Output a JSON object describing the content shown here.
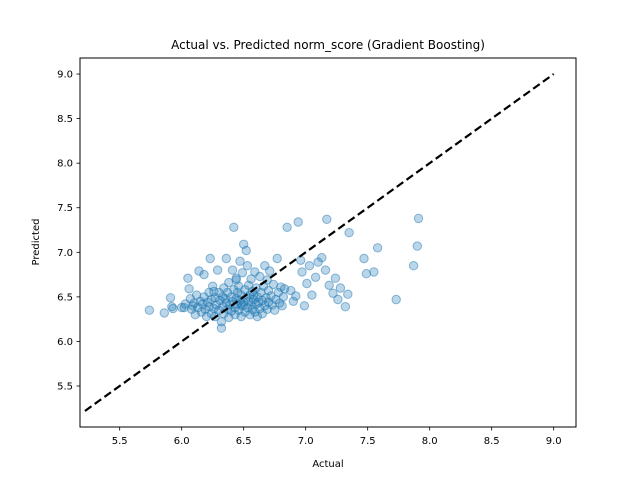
{
  "chart_data": {
    "type": "scatter",
    "title": "Actual vs. Predicted norm_score (Gradient Boosting)",
    "xlabel": "Actual",
    "ylabel": "Predicted",
    "xlim": [
      5.18,
      9.18
    ],
    "ylim": [
      5.04,
      9.18
    ],
    "x_ticks": [
      "5.5",
      "6.0",
      "6.5",
      "7.0",
      "7.5",
      "8.0",
      "8.5",
      "9.0"
    ],
    "y_ticks": [
      "5.5",
      "6.0",
      "6.5",
      "7.0",
      "7.5",
      "8.0",
      "8.5",
      "9.0"
    ],
    "grid": false,
    "legend": "none",
    "point_color": "#1f77b4",
    "point_alpha": 0.3,
    "reference_line": {
      "x": [
        5.22,
        9.0
      ],
      "y": [
        5.22,
        9.0
      ],
      "style": "dashed",
      "color": "#000000"
    },
    "points": [
      [
        5.74,
        6.35
      ],
      [
        5.86,
        6.32
      ],
      [
        5.91,
        6.49
      ],
      [
        5.92,
        6.39
      ],
      [
        5.93,
        6.37
      ],
      [
        6.02,
        6.38
      ],
      [
        6.03,
        6.42
      ],
      [
        6.05,
        6.71
      ],
      [
        6.06,
        6.59
      ],
      [
        6.07,
        6.48
      ],
      [
        6.08,
        6.36
      ],
      [
        6.09,
        6.4
      ],
      [
        6.1,
        6.43
      ],
      [
        6.11,
        6.3
      ],
      [
        6.12,
        6.52
      ],
      [
        6.13,
        6.38
      ],
      [
        6.14,
        6.79
      ],
      [
        6.15,
        6.45
      ],
      [
        6.16,
        6.33
      ],
      [
        6.17,
        6.42
      ],
      [
        6.18,
        6.5
      ],
      [
        6.18,
        6.75
      ],
      [
        6.19,
        6.36
      ],
      [
        6.2,
        6.28
      ],
      [
        6.21,
        6.44
      ],
      [
        6.22,
        6.55
      ],
      [
        6.22,
        6.39
      ],
      [
        6.23,
        6.93
      ],
      [
        6.24,
        6.31
      ],
      [
        6.24,
        6.47
      ],
      [
        6.25,
        6.62
      ],
      [
        6.26,
        6.37
      ],
      [
        6.27,
        6.49
      ],
      [
        6.27,
        6.28
      ],
      [
        6.28,
        6.41
      ],
      [
        6.29,
        6.8
      ],
      [
        6.3,
        6.55
      ],
      [
        6.3,
        6.35
      ],
      [
        6.31,
        6.46
      ],
      [
        6.32,
        6.15
      ],
      [
        6.32,
        6.22
      ],
      [
        6.33,
        6.39
      ],
      [
        6.34,
        6.6
      ],
      [
        6.34,
        6.31
      ],
      [
        6.35,
        6.48
      ],
      [
        6.36,
        6.93
      ],
      [
        6.36,
        6.43
      ],
      [
        6.37,
        6.36
      ],
      [
        6.37,
        6.55
      ],
      [
        6.38,
        6.27
      ],
      [
        6.38,
        6.66
      ],
      [
        6.39,
        6.41
      ],
      [
        6.4,
        6.5
      ],
      [
        6.4,
        6.34
      ],
      [
        6.41,
        6.8
      ],
      [
        6.41,
        6.45
      ],
      [
        6.42,
        7.28
      ],
      [
        6.42,
        6.58
      ],
      [
        6.43,
        6.38
      ],
      [
        6.43,
        6.3
      ],
      [
        6.44,
        6.48
      ],
      [
        6.44,
        6.71
      ],
      [
        6.45,
        6.42
      ],
      [
        6.45,
        6.55
      ],
      [
        6.46,
        6.35
      ],
      [
        6.46,
        6.62
      ],
      [
        6.47,
        6.9
      ],
      [
        6.47,
        6.46
      ],
      [
        6.48,
        6.28
      ],
      [
        6.48,
        6.52
      ],
      [
        6.49,
        6.4
      ],
      [
        6.49,
        6.77
      ],
      [
        6.5,
        7.09
      ],
      [
        6.5,
        6.44
      ],
      [
        6.51,
        6.58
      ],
      [
        6.51,
        6.33
      ],
      [
        6.52,
        7.02
      ],
      [
        6.52,
        6.49
      ],
      [
        6.53,
        6.85
      ],
      [
        6.53,
        6.38
      ],
      [
        6.54,
        6.63
      ],
      [
        6.54,
        6.45
      ],
      [
        6.55,
        6.3
      ],
      [
        6.55,
        6.52
      ],
      [
        6.56,
        6.7
      ],
      [
        6.56,
        6.41
      ],
      [
        6.57,
        6.36
      ],
      [
        6.57,
        6.56
      ],
      [
        6.58,
        6.47
      ],
      [
        6.59,
        6.78
      ],
      [
        6.59,
        6.33
      ],
      [
        6.6,
        6.42
      ],
      [
        6.6,
        6.6
      ],
      [
        6.61,
        6.5
      ],
      [
        6.61,
        6.28
      ],
      [
        6.62,
        6.44
      ],
      [
        6.63,
        6.73
      ],
      [
        6.63,
        6.37
      ],
      [
        6.64,
        6.55
      ],
      [
        6.65,
        6.46
      ],
      [
        6.65,
        6.31
      ],
      [
        6.66,
        6.62
      ],
      [
        6.67,
        6.4
      ],
      [
        6.67,
        6.85
      ],
      [
        6.68,
        6.49
      ],
      [
        6.69,
        6.36
      ],
      [
        6.7,
        6.57
      ],
      [
        6.7,
        6.44
      ],
      [
        6.71,
        6.79
      ],
      [
        6.72,
        6.51
      ],
      [
        6.73,
        6.41
      ],
      [
        6.74,
        6.64
      ],
      [
        6.75,
        6.35
      ],
      [
        6.76,
        6.47
      ],
      [
        6.77,
        6.93
      ],
      [
        6.78,
        6.55
      ],
      [
        6.79,
        6.43
      ],
      [
        6.8,
        6.61
      ],
      [
        6.81,
        6.4
      ],
      [
        6.82,
        6.5
      ],
      [
        6.85,
        7.28
      ],
      [
        6.88,
        6.57
      ],
      [
        6.9,
        6.45
      ],
      [
        6.92,
        6.51
      ],
      [
        6.94,
        7.34
      ],
      [
        6.96,
        6.91
      ],
      [
        6.97,
        6.78
      ],
      [
        6.99,
        6.4
      ],
      [
        7.01,
        6.65
      ],
      [
        7.03,
        6.85
      ],
      [
        7.05,
        6.52
      ],
      [
        7.08,
        6.72
      ],
      [
        7.1,
        6.89
      ],
      [
        7.13,
        6.94
      ],
      [
        7.16,
        6.8
      ],
      [
        7.17,
        7.37
      ],
      [
        7.19,
        6.63
      ],
      [
        7.22,
        6.54
      ],
      [
        7.24,
        6.71
      ],
      [
        7.26,
        6.47
      ],
      [
        7.28,
        6.6
      ],
      [
        7.32,
        6.39
      ],
      [
        7.34,
        6.53
      ],
      [
        7.35,
        7.22
      ],
      [
        7.47,
        6.93
      ],
      [
        7.49,
        6.76
      ],
      [
        7.55,
        6.78
      ],
      [
        7.58,
        7.05
      ],
      [
        7.73,
        6.47
      ],
      [
        7.87,
        6.85
      ],
      [
        7.9,
        7.07
      ],
      [
        7.91,
        7.38
      ],
      [
        6.0,
        6.38
      ],
      [
        6.26,
        6.56
      ],
      [
        6.44,
        6.69
      ],
      [
        6.58,
        6.52
      ],
      [
        6.69,
        6.69
      ],
      [
        6.83,
        6.59
      ],
      [
        6.33,
        6.5
      ],
      [
        6.48,
        6.42
      ]
    ]
  }
}
